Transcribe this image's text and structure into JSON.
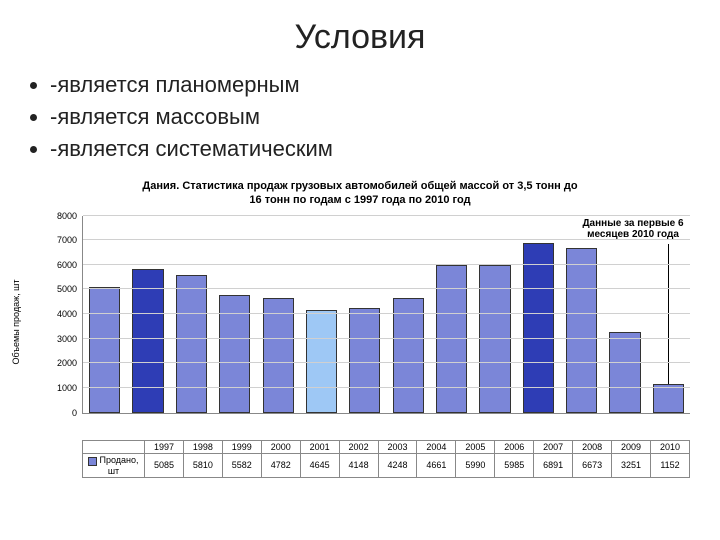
{
  "slide": {
    "title": "Условия",
    "bullets": [
      "-является планомерным",
      "-является массовым",
      "-является систематическим"
    ]
  },
  "chart": {
    "type": "bar",
    "title": "Дания. Статистика продаж грузовых автомобилей общей массой от 3,5 тонн до\n16 тонн по годам с 1997 года по 2010 год",
    "ylabel": "Объемы продаж, шт",
    "ylim": [
      0,
      8000
    ],
    "ytick_step": 1000,
    "grid_color": "#d0d0d0",
    "background_color": "#ffffff",
    "default_bar_color": "#7b86d8",
    "categories": [
      "1997",
      "1998",
      "1999",
      "2000",
      "2001",
      "2002",
      "2003",
      "2004",
      "2005",
      "2006",
      "2007",
      "2008",
      "2009",
      "2010"
    ],
    "values": [
      5085,
      5810,
      5582,
      4782,
      4645,
      4148,
      4248,
      4661,
      5990,
      5985,
      6891,
      6673,
      3251,
      1152
    ],
    "bar_colors": [
      "#7b86d8",
      "#2e3db5",
      "#7b86d8",
      "#7b86d8",
      "#7b86d8",
      "#9ec8f5",
      "#7b86d8",
      "#7b86d8",
      "#7b86d8",
      "#7b86d8",
      "#2e3db5",
      "#7b86d8",
      "#7b86d8",
      "#7b86d8"
    ],
    "data_row_label": "Продано, шт",
    "annotation": {
      "text": "Данные за первые 6\nмесяцев 2010 года",
      "target_index": 13
    }
  }
}
